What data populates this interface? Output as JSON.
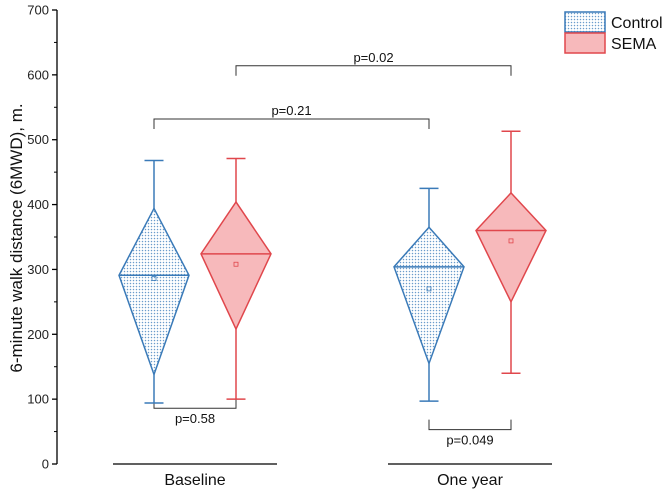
{
  "chart_data": {
    "type": "diamond-box",
    "ylabel": "6-minute walk distance (6MWD), m.",
    "ylim": [
      0,
      700
    ],
    "yticks": [
      0,
      100,
      200,
      300,
      400,
      500,
      600,
      700
    ],
    "groups": [
      "Baseline",
      "One year"
    ],
    "series": [
      {
        "name": "Control",
        "color": "#3a7ab8",
        "fill": "#dce9f5",
        "pattern": "dotted",
        "boxes": [
          {
            "group": "Baseline",
            "min": 94,
            "q1": 138,
            "median": 291,
            "q3": 394,
            "max": 468,
            "mean": 286
          },
          {
            "group": "One year",
            "min": 97,
            "q1": 155,
            "median": 304,
            "q3": 365,
            "max": 425,
            "mean": 270
          }
        ]
      },
      {
        "name": "SEMA",
        "color": "#e0474c",
        "fill": "#f7b9bb",
        "pattern": "solid",
        "boxes": [
          {
            "group": "Baseline",
            "min": 100,
            "q1": 208,
            "median": 324,
            "q3": 404,
            "max": 471,
            "mean": 308
          },
          {
            "group": "One year",
            "min": 140,
            "q1": 250,
            "median": 360,
            "q3": 418,
            "max": 513,
            "mean": 344
          }
        ]
      }
    ],
    "annotations": [
      {
        "label": "p=0.58",
        "from": "Baseline:Control",
        "to": "Baseline:SEMA",
        "y": 86,
        "position": "below"
      },
      {
        "label": "p=0.049",
        "from": "One year:Control",
        "to": "One year:SEMA",
        "y": 53,
        "position": "below"
      },
      {
        "label": "p=0.21",
        "from": "Baseline:Control",
        "to": "One year:Control",
        "y": 532,
        "position": "above"
      },
      {
        "label": "p=0.02",
        "from": "Baseline:SEMA",
        "to": "One year:SEMA",
        "y": 614,
        "position": "above"
      }
    ],
    "legend": {
      "position": "top-right"
    }
  }
}
